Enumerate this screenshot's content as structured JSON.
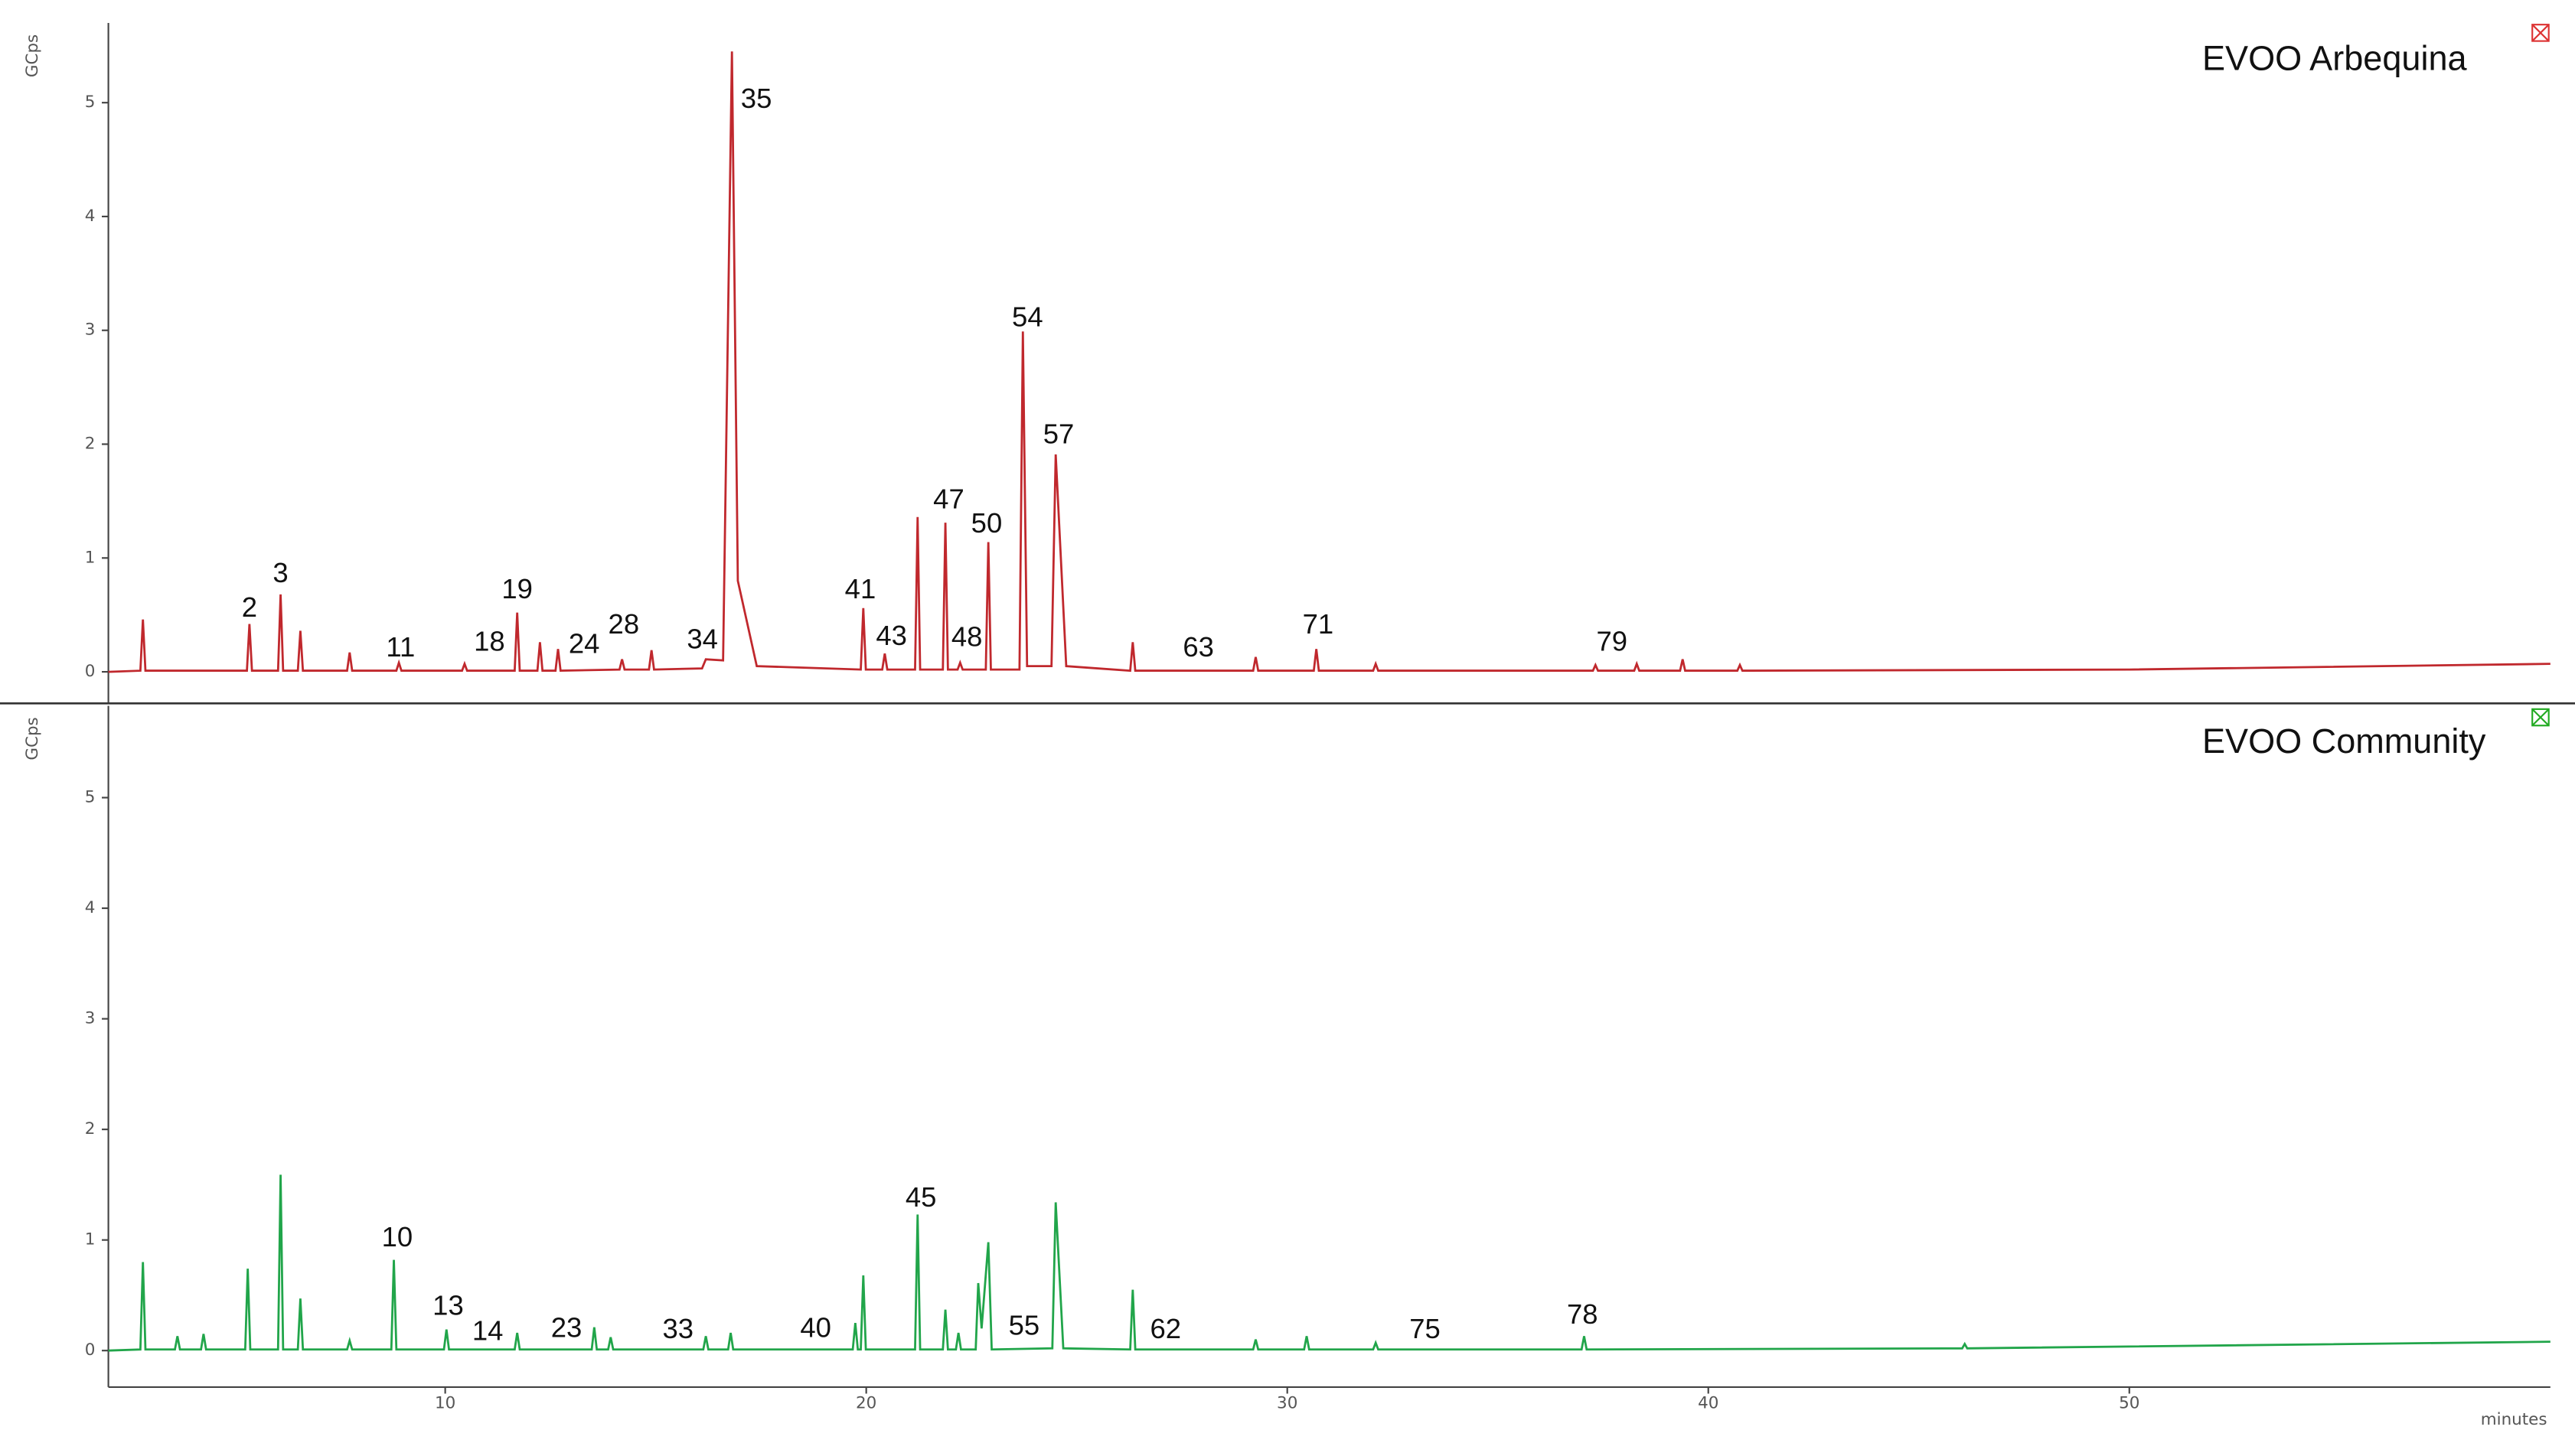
{
  "chart_data": [
    {
      "type": "line",
      "title": "EVOO Arbequina",
      "y_label": "GCps",
      "color": "#c0282d",
      "xlim": [
        2,
        60
      ],
      "ylim": [
        -0.27,
        5.7
      ],
      "yticks": [
        0,
        1,
        2,
        3,
        4,
        5
      ],
      "x": [
        2.0,
        2.76,
        2.82,
        2.88,
        5.29,
        5.35,
        5.41,
        6.03,
        6.09,
        6.15,
        6.5,
        6.56,
        6.62,
        7.67,
        7.73,
        7.79,
        8.84,
        8.9,
        8.96,
        10.4,
        10.46,
        10.52,
        11.65,
        11.71,
        11.77,
        12.19,
        12.25,
        12.31,
        12.62,
        12.68,
        12.74,
        14.14,
        14.2,
        14.26,
        14.84,
        14.9,
        14.96,
        16.1,
        16.19,
        16.6,
        16.81,
        16.95,
        17.4,
        19.87,
        19.93,
        19.99,
        20.38,
        20.44,
        20.5,
        21.16,
        21.22,
        21.28,
        21.82,
        21.88,
        21.94,
        22.17,
        22.23,
        22.29,
        22.84,
        22.9,
        22.96,
        23.64,
        23.72,
        23.82,
        24.4,
        24.5,
        24.75,
        26.27,
        26.33,
        26.39,
        29.19,
        29.25,
        29.31,
        30.63,
        30.69,
        30.75,
        32.04,
        32.1,
        32.16,
        37.26,
        37.32,
        37.38,
        38.24,
        38.3,
        38.36,
        39.33,
        39.39,
        39.45,
        40.69,
        40.75,
        40.81,
        50.0,
        60.0
      ],
      "values": [
        0.0,
        0.01,
        0.46,
        0.01,
        0.01,
        0.42,
        0.01,
        0.01,
        0.68,
        0.01,
        0.01,
        0.36,
        0.01,
        0.01,
        0.17,
        0.01,
        0.01,
        0.08,
        0.01,
        0.01,
        0.07,
        0.01,
        0.01,
        0.52,
        0.01,
        0.01,
        0.26,
        0.01,
        0.01,
        0.2,
        0.01,
        0.02,
        0.11,
        0.02,
        0.02,
        0.19,
        0.02,
        0.03,
        0.11,
        0.1,
        5.45,
        0.8,
        0.05,
        0.02,
        0.56,
        0.02,
        0.02,
        0.16,
        0.02,
        0.02,
        1.36,
        0.02,
        0.02,
        1.31,
        0.02,
        0.02,
        0.08,
        0.02,
        0.02,
        1.14,
        0.02,
        0.02,
        2.99,
        0.05,
        0.05,
        1.91,
        0.05,
        0.01,
        0.26,
        0.01,
        0.01,
        0.13,
        0.01,
        0.01,
        0.2,
        0.01,
        0.01,
        0.07,
        0.01,
        0.01,
        0.06,
        0.01,
        0.01,
        0.07,
        0.01,
        0.01,
        0.11,
        0.01,
        0.01,
        0.06,
        0.01,
        0.02,
        0.07
      ],
      "annotations": [
        {
          "label": "2",
          "x": 5.35,
          "y": 0.55
        },
        {
          "label": "3",
          "x": 6.09,
          "y": 0.85
        },
        {
          "label": "11",
          "x": 8.94,
          "y": 0.2
        },
        {
          "label": "18",
          "x": 11.05,
          "y": 0.25
        },
        {
          "label": "19",
          "x": 11.71,
          "y": 0.71
        },
        {
          "label": "24",
          "x": 13.3,
          "y": 0.23
        },
        {
          "label": "28",
          "x": 14.24,
          "y": 0.4
        },
        {
          "label": "34",
          "x": 16.11,
          "y": 0.27
        },
        {
          "label": "35",
          "x": 17.39,
          "y": 5.02
        },
        {
          "label": "41",
          "x": 19.86,
          "y": 0.71
        },
        {
          "label": "43",
          "x": 20.6,
          "y": 0.3
        },
        {
          "label": "47",
          "x": 21.96,
          "y": 1.5
        },
        {
          "label": "48",
          "x": 22.39,
          "y": 0.29
        },
        {
          "label": "50",
          "x": 22.86,
          "y": 1.29
        },
        {
          "label": "54",
          "x": 23.83,
          "y": 3.1
        },
        {
          "label": "57",
          "x": 24.57,
          "y": 2.07
        },
        {
          "label": "63",
          "x": 27.89,
          "y": 0.2
        },
        {
          "label": "71",
          "x": 30.73,
          "y": 0.4
        },
        {
          "label": "79",
          "x": 37.71,
          "y": 0.25
        }
      ]
    },
    {
      "type": "line",
      "title": "EVOO Community",
      "y_label": "GCps",
      "x_label": "minutes",
      "color": "#21a54a",
      "xlim": [
        2,
        60
      ],
      "ylim": [
        -0.33,
        5.83
      ],
      "yticks": [
        0,
        1,
        2,
        3,
        4,
        5
      ],
      "xticks": [
        10,
        20,
        30,
        40,
        50
      ],
      "x": [
        2.0,
        2.76,
        2.82,
        2.88,
        3.58,
        3.64,
        3.7,
        4.2,
        4.26,
        4.32,
        5.25,
        5.31,
        5.37,
        6.03,
        6.09,
        6.15,
        6.5,
        6.56,
        6.62,
        7.67,
        7.73,
        7.79,
        8.72,
        8.78,
        8.84,
        9.97,
        10.03,
        10.09,
        11.65,
        11.71,
        11.77,
        13.48,
        13.54,
        13.6,
        13.87,
        13.93,
        13.99,
        16.13,
        16.19,
        16.25,
        16.72,
        16.78,
        16.84,
        19.68,
        19.74,
        19.8,
        19.87,
        19.93,
        19.99,
        21.16,
        21.22,
        21.28,
        21.82,
        21.88,
        21.94,
        22.13,
        22.19,
        22.25,
        22.6,
        22.66,
        22.74,
        22.9,
        22.98,
        24.42,
        24.5,
        24.68,
        26.27,
        26.33,
        26.39,
        29.19,
        29.25,
        29.31,
        30.4,
        30.46,
        30.52,
        32.04,
        32.1,
        32.16,
        36.99,
        37.05,
        37.11,
        46.03,
        46.09,
        46.15,
        60.0
      ],
      "values": [
        0.0,
        0.01,
        0.8,
        0.01,
        0.01,
        0.13,
        0.01,
        0.01,
        0.15,
        0.01,
        0.01,
        0.74,
        0.01,
        0.01,
        1.59,
        0.01,
        0.01,
        0.47,
        0.01,
        0.01,
        0.09,
        0.01,
        0.01,
        0.82,
        0.01,
        0.01,
        0.19,
        0.01,
        0.01,
        0.16,
        0.01,
        0.01,
        0.21,
        0.01,
        0.01,
        0.12,
        0.01,
        0.01,
        0.13,
        0.01,
        0.01,
        0.16,
        0.01,
        0.01,
        0.25,
        0.01,
        0.01,
        0.68,
        0.01,
        0.01,
        1.23,
        0.01,
        0.01,
        0.37,
        0.01,
        0.01,
        0.16,
        0.01,
        0.01,
        0.61,
        0.2,
        0.98,
        0.01,
        0.02,
        1.34,
        0.02,
        0.01,
        0.55,
        0.01,
        0.01,
        0.1,
        0.01,
        0.01,
        0.13,
        0.01,
        0.01,
        0.07,
        0.01,
        0.01,
        0.13,
        0.01,
        0.02,
        0.06,
        0.02,
        0.08
      ],
      "annotations": [
        {
          "label": "10",
          "x": 8.86,
          "y": 1.01
        },
        {
          "label": "13",
          "x": 10.07,
          "y": 0.39
        },
        {
          "label": "14",
          "x": 11.01,
          "y": 0.16
        },
        {
          "label": "23",
          "x": 12.88,
          "y": 0.19
        },
        {
          "label": "33",
          "x": 15.53,
          "y": 0.18
        },
        {
          "label": "40",
          "x": 18.8,
          "y": 0.19
        },
        {
          "label": "45",
          "x": 21.3,
          "y": 1.37
        },
        {
          "label": "55",
          "x": 23.75,
          "y": 0.21
        },
        {
          "label": "62",
          "x": 27.11,
          "y": 0.18
        },
        {
          "label": "75",
          "x": 33.27,
          "y": 0.18
        },
        {
          "label": "78",
          "x": 37.01,
          "y": 0.31
        }
      ]
    }
  ]
}
